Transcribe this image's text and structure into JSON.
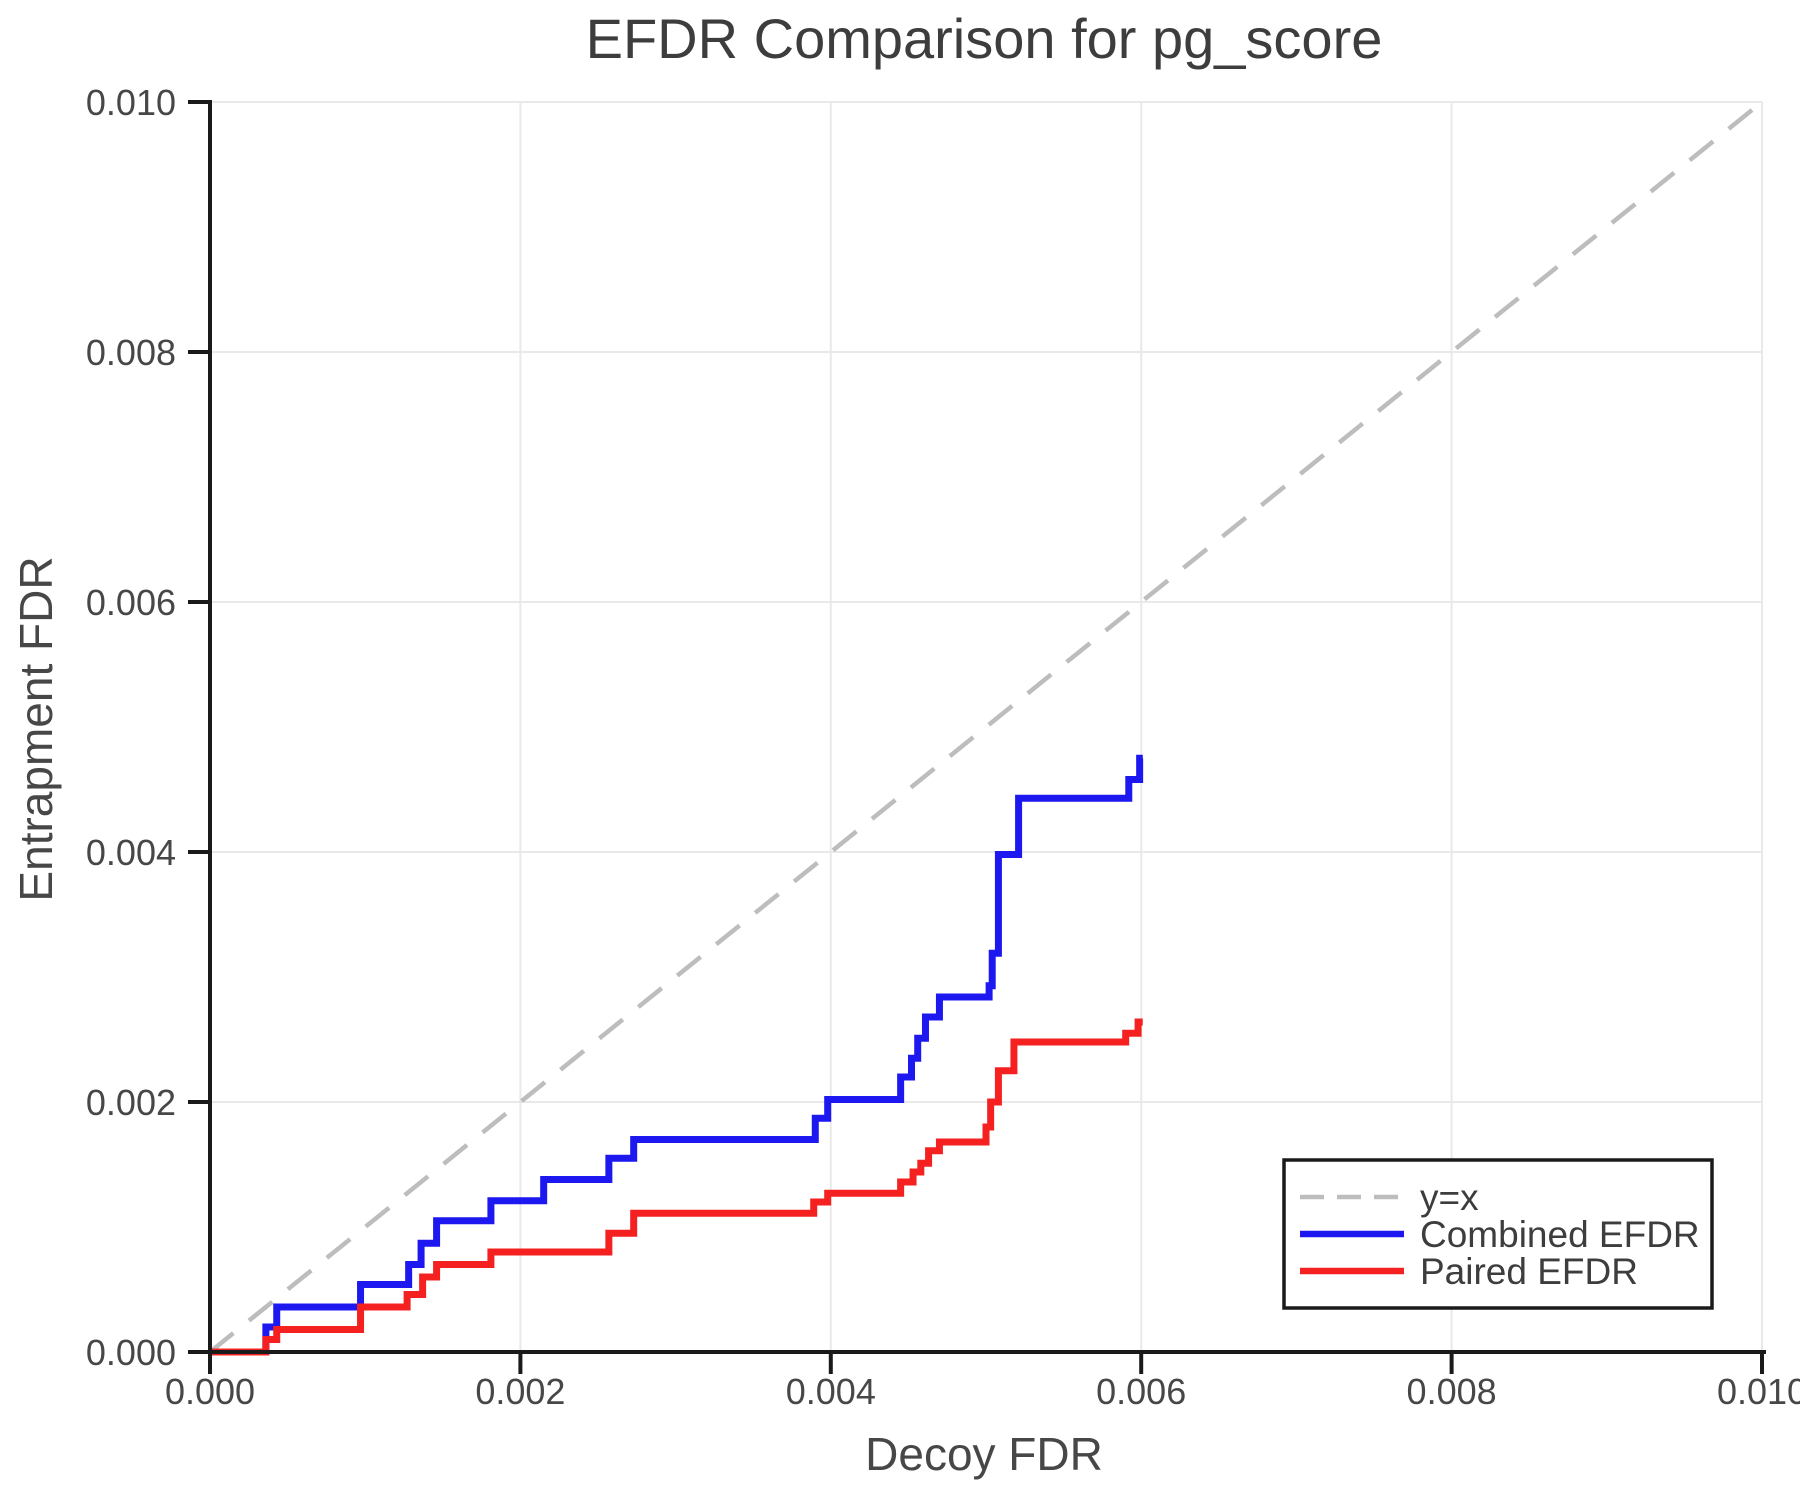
{
  "chart_data": {
    "type": "line",
    "title": "EFDR Comparison for pg_score",
    "xlabel": "Decoy FDR",
    "ylabel": "Entrapment FDR",
    "xlim": [
      0.0,
      0.01
    ],
    "ylim": [
      0.0,
      0.01
    ],
    "x_ticks": [
      0.0,
      0.002,
      0.004,
      0.006,
      0.008,
      0.01
    ],
    "x_tick_labels": [
      "0.000",
      "0.002",
      "0.004",
      "0.006",
      "0.008",
      "0.010"
    ],
    "y_ticks": [
      0.0,
      0.002,
      0.004,
      0.006,
      0.008,
      0.01
    ],
    "y_tick_labels": [
      "0.000",
      "0.002",
      "0.004",
      "0.006",
      "0.008",
      "0.010"
    ],
    "grid": true,
    "background_color": "#ffffff",
    "grid_color": "#e9e9e9",
    "axis_color": "#1a1a1a",
    "text_color": "#3d3d3d",
    "legend": {
      "position": "lower right",
      "border_color": "#1a1a1a",
      "fill_color": "#ffffff"
    },
    "series": [
      {
        "id": "identity",
        "name": "y=x",
        "style": "dashed",
        "color": "#bdbdbd",
        "points": [
          [
            0.0,
            0.0
          ],
          [
            0.01,
            0.01
          ]
        ]
      },
      {
        "id": "combined",
        "name": "Combined EFDR",
        "style": "step",
        "color": "#1d18f0",
        "points": [
          [
            0.0,
            0.0
          ],
          [
            0.00036,
            0.0002
          ],
          [
            0.00043,
            0.00036
          ],
          [
            0.00097,
            0.00054
          ],
          [
            0.00128,
            0.0007
          ],
          [
            0.00136,
            0.00087
          ],
          [
            0.00146,
            0.00105
          ],
          [
            0.00181,
            0.00121
          ],
          [
            0.00215,
            0.00138
          ],
          [
            0.00257,
            0.00155
          ],
          [
            0.00273,
            0.0017
          ],
          [
            0.0039,
            0.00187
          ],
          [
            0.00398,
            0.00202
          ],
          [
            0.00445,
            0.0022
          ],
          [
            0.00452,
            0.00235
          ],
          [
            0.00456,
            0.00251
          ],
          [
            0.00461,
            0.00268
          ],
          [
            0.0047,
            0.00284
          ],
          [
            0.00502,
            0.00293
          ],
          [
            0.00504,
            0.00319
          ],
          [
            0.00508,
            0.00398
          ],
          [
            0.00521,
            0.00443
          ],
          [
            0.00592,
            0.00458
          ],
          [
            0.00599,
            0.00475
          ],
          [
            0.00601,
            0.00475
          ]
        ]
      },
      {
        "id": "paired",
        "name": "Paired EFDR",
        "style": "step",
        "color": "#f52020",
        "points": [
          [
            0.0,
            0.0
          ],
          [
            0.00036,
            0.0001
          ],
          [
            0.00043,
            0.00018
          ],
          [
            0.00097,
            0.00036
          ],
          [
            0.00127,
            0.00046
          ],
          [
            0.00137,
            0.0006
          ],
          [
            0.00146,
            0.0007
          ],
          [
            0.00181,
            0.0008
          ],
          [
            0.00257,
            0.00095
          ],
          [
            0.00273,
            0.00111
          ],
          [
            0.00389,
            0.0012
          ],
          [
            0.00398,
            0.00127
          ],
          [
            0.00445,
            0.00136
          ],
          [
            0.00453,
            0.00144
          ],
          [
            0.00458,
            0.00151
          ],
          [
            0.00463,
            0.00161
          ],
          [
            0.0047,
            0.00168
          ],
          [
            0.005,
            0.0018
          ],
          [
            0.00503,
            0.002
          ],
          [
            0.00508,
            0.00225
          ],
          [
            0.00518,
            0.00248
          ],
          [
            0.0059,
            0.00255
          ],
          [
            0.00598,
            0.00264
          ],
          [
            0.00601,
            0.00264
          ]
        ]
      }
    ]
  }
}
